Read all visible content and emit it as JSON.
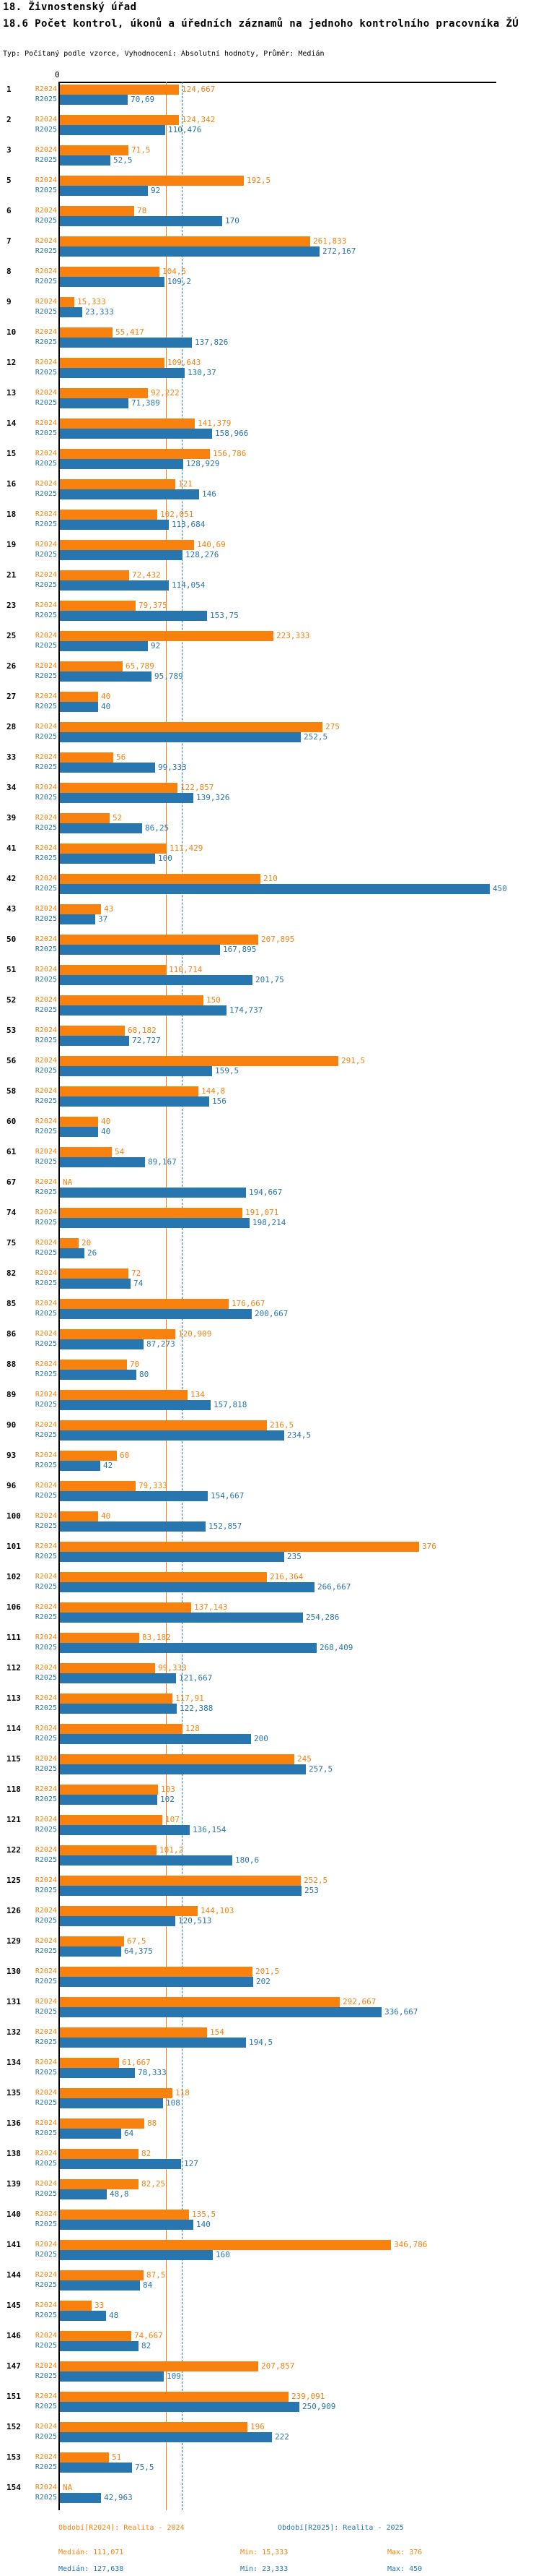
{
  "header": {
    "title": "18. Živnostenský úřad",
    "subtitle": "18.6 Počet kontrol, úkonů a úředních záznamů na jednoho kontrolního pracovníka ŽÚ",
    "meta": "Typ: Počítaný podle vzorce, Vyhodnocení: Absolutní hodnoty, Průměr: Medián"
  },
  "chart_data": {
    "type": "bar",
    "orientation": "horizontal",
    "origin_tick_label": "0",
    "xlim": [
      0,
      450
    ],
    "grid": false,
    "series_names": [
      "R2024",
      "R2025"
    ],
    "colors": {
      "r2024": "#F9820E",
      "r2025": "#2776B0"
    },
    "na_label": "NA",
    "reference_lines": [
      {
        "series": "R2024",
        "name": "median-2024",
        "value": 111.071
      },
      {
        "series": "R2025",
        "name": "median-2025",
        "value": 127.638
      }
    ],
    "rows": [
      {
        "id": "1",
        "r2024": "124,667",
        "r2025": "70,69"
      },
      {
        "id": "2",
        "r2024": "124,342",
        "r2025": "110,476"
      },
      {
        "id": "3",
        "r2024": "71,5",
        "r2025": "52,5"
      },
      {
        "id": "5",
        "r2024": "192,5",
        "r2025": "92"
      },
      {
        "id": "6",
        "r2024": "78",
        "r2025": "170"
      },
      {
        "id": "7",
        "r2024": "261,833",
        "r2025": "272,167"
      },
      {
        "id": "8",
        "r2024": "104,5",
        "r2025": "109,2"
      },
      {
        "id": "9",
        "r2024": "15,333",
        "r2025": "23,333"
      },
      {
        "id": "10",
        "r2024": "55,417",
        "r2025": "137,826"
      },
      {
        "id": "12",
        "r2024": "109,643",
        "r2025": "130,37"
      },
      {
        "id": "13",
        "r2024": "92,222",
        "r2025": "71,389"
      },
      {
        "id": "14",
        "r2024": "141,379",
        "r2025": "158,966"
      },
      {
        "id": "15",
        "r2024": "156,786",
        "r2025": "128,929"
      },
      {
        "id": "16",
        "r2024": "121",
        "r2025": "146"
      },
      {
        "id": "18",
        "r2024": "102,051",
        "r2025": "113,684"
      },
      {
        "id": "19",
        "r2024": "140,69",
        "r2025": "128,276"
      },
      {
        "id": "21",
        "r2024": "72,432",
        "r2025": "114,054"
      },
      {
        "id": "23",
        "r2024": "79,375",
        "r2025": "153,75"
      },
      {
        "id": "25",
        "r2024": "223,333",
        "r2025": "92"
      },
      {
        "id": "26",
        "r2024": "65,789",
        "r2025": "95,789"
      },
      {
        "id": "27",
        "r2024": "40",
        "r2025": "40"
      },
      {
        "id": "28",
        "r2024": "275",
        "r2025": "252,5"
      },
      {
        "id": "33",
        "r2024": "56",
        "r2025": "99,333"
      },
      {
        "id": "34",
        "r2024": "122,857",
        "r2025": "139,326"
      },
      {
        "id": "39",
        "r2024": "52",
        "r2025": "86,25"
      },
      {
        "id": "41",
        "r2024": "111,429",
        "r2025": "100"
      },
      {
        "id": "42",
        "r2024": "210",
        "r2025": "450"
      },
      {
        "id": "43",
        "r2024": "43",
        "r2025": "37"
      },
      {
        "id": "50",
        "r2024": "207,895",
        "r2025": "167,895"
      },
      {
        "id": "51",
        "r2024": "110,714",
        "r2025": "201,75"
      },
      {
        "id": "52",
        "r2024": "150",
        "r2025": "174,737"
      },
      {
        "id": "53",
        "r2024": "68,182",
        "r2025": "72,727"
      },
      {
        "id": "56",
        "r2024": "291,5",
        "r2025": "159,5"
      },
      {
        "id": "58",
        "r2024": "144,8",
        "r2025": "156"
      },
      {
        "id": "60",
        "r2024": "40",
        "r2025": "40"
      },
      {
        "id": "61",
        "r2024": "54",
        "r2025": "89,167"
      },
      {
        "id": "67",
        "r2024": "NA",
        "r2025": "194,667"
      },
      {
        "id": "74",
        "r2024": "191,071",
        "r2025": "198,214"
      },
      {
        "id": "75",
        "r2024": "20",
        "r2025": "26"
      },
      {
        "id": "82",
        "r2024": "72",
        "r2025": "74"
      },
      {
        "id": "85",
        "r2024": "176,667",
        "r2025": "200,667"
      },
      {
        "id": "86",
        "r2024": "120,909",
        "r2025": "87,273"
      },
      {
        "id": "88",
        "r2024": "70",
        "r2025": "80"
      },
      {
        "id": "89",
        "r2024": "134",
        "r2025": "157,818"
      },
      {
        "id": "90",
        "r2024": "216,5",
        "r2025": "234,5"
      },
      {
        "id": "93",
        "r2024": "60",
        "r2025": "42"
      },
      {
        "id": "96",
        "r2024": "79,333",
        "r2025": "154,667"
      },
      {
        "id": "100",
        "r2024": "40",
        "r2025": "152,857"
      },
      {
        "id": "101",
        "r2024": "376",
        "r2025": "235"
      },
      {
        "id": "102",
        "r2024": "216,364",
        "r2025": "266,667"
      },
      {
        "id": "106",
        "r2024": "137,143",
        "r2025": "254,286"
      },
      {
        "id": "111",
        "r2024": "83,182",
        "r2025": "268,409"
      },
      {
        "id": "112",
        "r2024": "99,333",
        "r2025": "121,667"
      },
      {
        "id": "113",
        "r2024": "117,91",
        "r2025": "122,388"
      },
      {
        "id": "114",
        "r2024": "128",
        "r2025": "200"
      },
      {
        "id": "115",
        "r2024": "245",
        "r2025": "257,5"
      },
      {
        "id": "118",
        "r2024": "103",
        "r2025": "102"
      },
      {
        "id": "121",
        "r2024": "107",
        "r2025": "136,154"
      },
      {
        "id": "122",
        "r2024": "101,2",
        "r2025": "180,6"
      },
      {
        "id": "125",
        "r2024": "252,5",
        "r2025": "253"
      },
      {
        "id": "126",
        "r2024": "144,103",
        "r2025": "120,513"
      },
      {
        "id": "129",
        "r2024": "67,5",
        "r2025": "64,375"
      },
      {
        "id": "130",
        "r2024": "201,5",
        "r2025": "202"
      },
      {
        "id": "131",
        "r2024": "292,667",
        "r2025": "336,667"
      },
      {
        "id": "132",
        "r2024": "154",
        "r2025": "194,5"
      },
      {
        "id": "134",
        "r2024": "61,667",
        "r2025": "78,333"
      },
      {
        "id": "135",
        "r2024": "118",
        "r2025": "108"
      },
      {
        "id": "136",
        "r2024": "88",
        "r2025": "64"
      },
      {
        "id": "138",
        "r2024": "82",
        "r2025": "127"
      },
      {
        "id": "139",
        "r2024": "82,25",
        "r2025": "48,8"
      },
      {
        "id": "140",
        "r2024": "135,5",
        "r2025": "140"
      },
      {
        "id": "141",
        "r2024": "346,786",
        "r2025": "160"
      },
      {
        "id": "144",
        "r2024": "87,5",
        "r2025": "84"
      },
      {
        "id": "145",
        "r2024": "33",
        "r2025": "48"
      },
      {
        "id": "146",
        "r2024": "74,667",
        "r2025": "82"
      },
      {
        "id": "147",
        "r2024": "207,857",
        "r2025": "109"
      },
      {
        "id": "151",
        "r2024": "239,091",
        "r2025": "250,909"
      },
      {
        "id": "152",
        "r2024": "196",
        "r2025": "222"
      },
      {
        "id": "153",
        "r2024": "51",
        "r2025": "75,5"
      },
      {
        "id": "154",
        "r2024": "NA",
        "r2025": "42,963"
      }
    ]
  },
  "footer": {
    "r2024": {
      "period": "Období[R2024]: Realita - 2024",
      "median": "Medián: 111,071",
      "min": "Min: 15,333",
      "max": "Max: 376"
    },
    "r2025": {
      "period": "Období[R2025]: Realita - 2025",
      "median": "Medián: 127,638",
      "min": "Min: 23,333",
      "max": "Max: 450"
    }
  }
}
